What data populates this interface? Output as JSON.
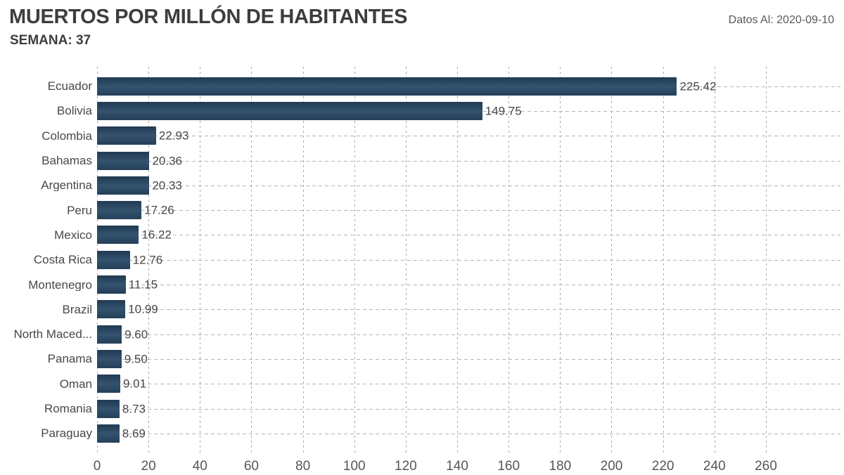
{
  "header": {
    "title": "MUERTOS POR MILLÓN DE HABITANTES",
    "subtitle": "SEMANA: 37",
    "note": "Datos Al: 2020-09-10"
  },
  "chart_data": {
    "type": "bar",
    "orientation": "horizontal",
    "title": "MUERTOS POR MILLÓN DE HABITANTES",
    "subtitle": "SEMANA: 37",
    "note": "Datos Al: 2020-09-10",
    "categories": [
      "Ecuador",
      "Bolivia",
      "Colombia",
      "Bahamas",
      "Argentina",
      "Peru",
      "Mexico",
      "Costa Rica",
      "Montenegro",
      "Brazil",
      "North Maced...",
      "Panama",
      "Oman",
      "Romania",
      "Paraguay"
    ],
    "values": [
      225.42,
      149.75,
      22.93,
      20.36,
      20.33,
      17.26,
      16.22,
      12.76,
      11.15,
      10.99,
      9.6,
      9.5,
      9.01,
      8.73,
      8.69
    ],
    "value_labels": [
      "225.42",
      "149.75",
      "22.93",
      "20.36",
      "20.33",
      "17.26",
      "16.22",
      "12.76",
      "11.15",
      "10.99",
      "9.60",
      "9.50",
      "9.01",
      "8.73",
      "8.69"
    ],
    "xlabel": "",
    "ylabel": "",
    "xlim": [
      0,
      289
    ],
    "x_ticks": [
      0,
      20,
      40,
      60,
      80,
      100,
      120,
      140,
      160,
      180,
      200,
      220,
      240,
      260
    ],
    "grid": "dashed",
    "legend": "none",
    "colors": {
      "bar_top": "#203a52",
      "bar_mid": "#33536f",
      "bar_bottom": "#253f58",
      "grid_line": "#b0b0b0",
      "label_text": "#484848",
      "axis_text": "#565656"
    }
  }
}
